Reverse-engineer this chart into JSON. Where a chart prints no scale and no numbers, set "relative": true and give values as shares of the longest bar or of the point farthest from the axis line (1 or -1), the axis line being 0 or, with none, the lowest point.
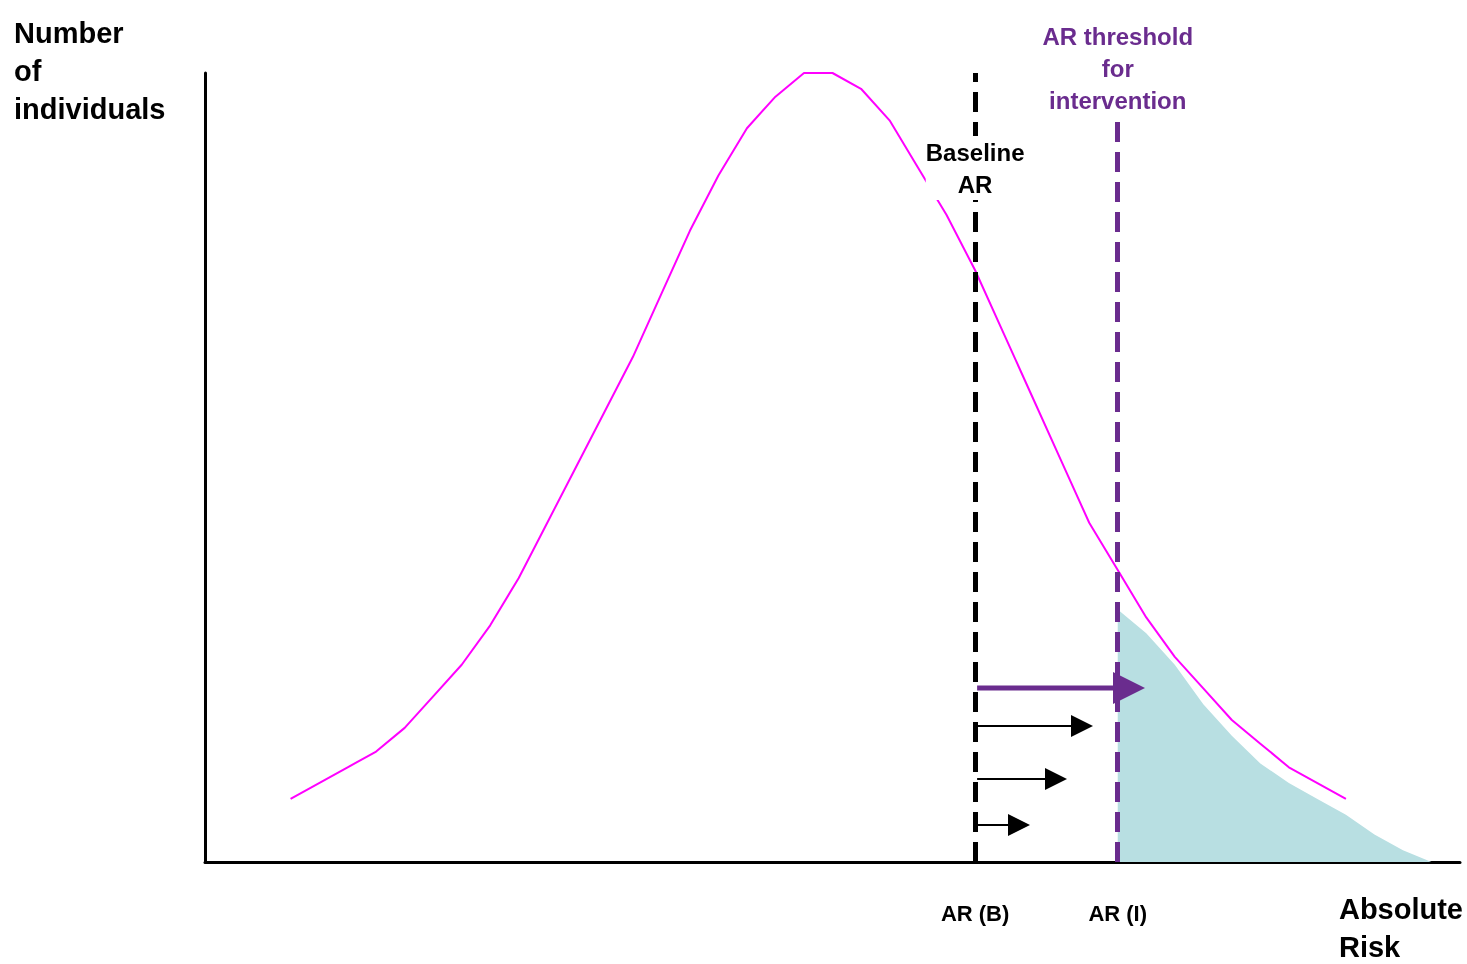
{
  "chart_data": {
    "type": "line",
    "relative": true,
    "xlabel": "Absolute\nRisk",
    "ylabel": "Number\nof\nindividuals",
    "categories": [
      null,
      null,
      null,
      null,
      null,
      null,
      null,
      null,
      null,
      null,
      null,
      null,
      null,
      null,
      null,
      null,
      null,
      null,
      null,
      null,
      null,
      null,
      null,
      null,
      null,
      null,
      null,
      "AR (B)",
      null,
      null,
      null,
      null,
      "AR (I)",
      null,
      null,
      null,
      null,
      null,
      null,
      null,
      null,
      null,
      null,
      null,
      null
    ],
    "series": [
      {
        "color": "#ff00ff",
        "values": [
          null,
          null,
          null,
          0.08,
          0.1,
          0.12,
          0.14,
          0.17,
          0.21,
          0.25,
          0.3,
          0.36,
          0.43,
          0.5,
          0.57,
          0.64,
          0.72,
          0.8,
          0.87,
          0.93,
          0.97,
          1.0,
          1.0,
          0.98,
          0.94,
          0.88,
          0.82,
          0.75,
          0.67,
          0.59,
          0.51,
          0.43,
          0.37,
          0.31,
          0.26,
          0.22,
          0.18,
          0.15,
          0.12,
          0.1,
          0.08,
          null,
          null,
          null,
          null
        ]
      },
      {
        "type": "area",
        "color": "#b8dfe2",
        "values": [
          null,
          null,
          null,
          null,
          null,
          null,
          null,
          null,
          null,
          null,
          null,
          null,
          null,
          null,
          null,
          null,
          null,
          null,
          null,
          null,
          null,
          null,
          null,
          null,
          null,
          null,
          null,
          null,
          null,
          null,
          null,
          null,
          0.32,
          0.29,
          0.25,
          0.2,
          0.16,
          0.125,
          0.1,
          0.08,
          0.06,
          0.035,
          0.015,
          0,
          null
        ]
      }
    ],
    "ref_lines": [
      {
        "axis": "x",
        "value": "AR (B)",
        "color": "#000000",
        "line_style": "dashed"
      },
      {
        "axis": "x",
        "value": "AR (I)",
        "color": "#6a2c8e",
        "line_style": "dashed"
      }
    ],
    "annotations": [
      "Baseline\nAR",
      "AR threshold\nfor\nintervention"
    ],
    "grid": false,
    "marker": "none"
  }
}
